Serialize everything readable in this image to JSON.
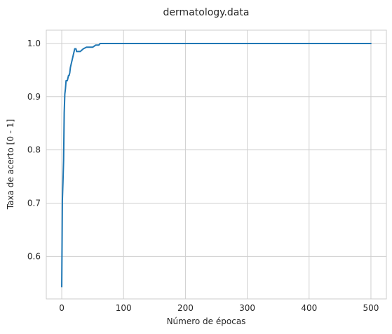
{
  "chart_data": {
    "type": "line",
    "title": "dermatology.data",
    "xlabel": "Número de épocas",
    "ylabel": "Taxa de acerto [0 - 1]",
    "xlim": [
      -25,
      525
    ],
    "ylim": [
      0.52,
      1.025
    ],
    "xticks": [
      0,
      100,
      200,
      300,
      400,
      500
    ],
    "yticks": [
      0.6,
      0.7,
      0.8,
      0.9,
      1.0
    ],
    "xtick_labels": [
      "0",
      "100",
      "200",
      "300",
      "400",
      "500"
    ],
    "ytick_labels": [
      "0.6",
      "0.7",
      "0.8",
      "0.9",
      "1.0"
    ],
    "grid": true,
    "legend": "none",
    "series": [
      {
        "color": "#1f77b4",
        "x": [
          0,
          1,
          2,
          3,
          4,
          5,
          6,
          7,
          8,
          9,
          10,
          11,
          12,
          13,
          14,
          15,
          16,
          17,
          18,
          19,
          20,
          21,
          22,
          23,
          24,
          25,
          30,
          35,
          40,
          45,
          50,
          55,
          58,
          60,
          62,
          65,
          70,
          100,
          200,
          300,
          400,
          500
        ],
        "y": [
          0.543,
          0.705,
          0.74,
          0.78,
          0.87,
          0.905,
          0.915,
          0.93,
          0.93,
          0.93,
          0.935,
          0.94,
          0.94,
          0.945,
          0.955,
          0.96,
          0.965,
          0.97,
          0.975,
          0.98,
          0.985,
          0.99,
          0.99,
          0.99,
          0.985,
          0.985,
          0.985,
          0.99,
          0.993,
          0.993,
          0.993,
          0.997,
          0.997,
          0.997,
          1.0,
          1.0,
          1.0,
          1.0,
          1.0,
          1.0,
          1.0,
          1.0
        ]
      }
    ]
  }
}
